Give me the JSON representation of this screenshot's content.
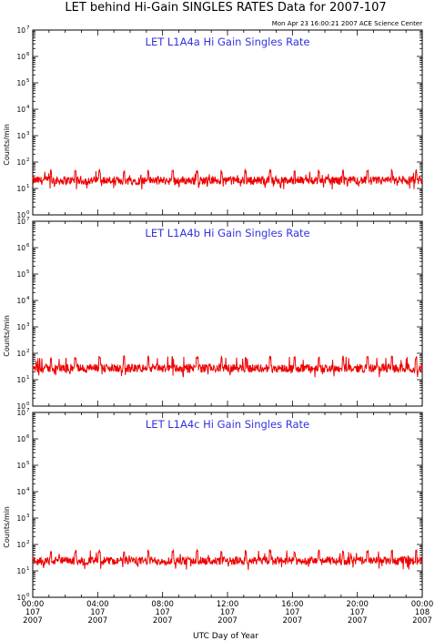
{
  "title": "LET behind Hi-Gain SINGLES RATES Data for 2007-107",
  "timestamp": "Mon Apr 23 16:00:21 2007 ACE Science Center",
  "xlabel": "UTC Day of Year",
  "colors": {
    "panel_title": "#3333dd",
    "series": "#ee0000",
    "axes": "#000000",
    "background": "#ffffff"
  },
  "chart_data": [
    {
      "type": "line",
      "panel_title": "LET L1A4a Hi Gain Singles Rate",
      "ylabel": "Counts/min",
      "yscale": "log",
      "ylim": [
        1,
        10000000
      ],
      "y_tick_labels": [
        {
          "base": "10",
          "exp": "0"
        },
        {
          "base": "10",
          "exp": "1"
        },
        {
          "base": "10",
          "exp": "2"
        },
        {
          "base": "10",
          "exp": "3"
        },
        {
          "base": "10",
          "exp": "4"
        },
        {
          "base": "10",
          "exp": "5"
        },
        {
          "base": "10",
          "exp": "6"
        },
        {
          "base": "10",
          "exp": "7"
        }
      ],
      "xlim_hours": [
        0,
        24
      ],
      "baseline": 20,
      "spike_level": 45,
      "spike_interval_hours": 1.5
    },
    {
      "type": "line",
      "panel_title": "LET L1A4b Hi Gain Singles Rate",
      "ylabel": "Counts/min",
      "yscale": "log",
      "ylim": [
        1,
        10000000
      ],
      "y_tick_labels": [
        {
          "base": "10",
          "exp": "0"
        },
        {
          "base": "10",
          "exp": "1"
        },
        {
          "base": "10",
          "exp": "2"
        },
        {
          "base": "10",
          "exp": "3"
        },
        {
          "base": "10",
          "exp": "4"
        },
        {
          "base": "10",
          "exp": "5"
        },
        {
          "base": "10",
          "exp": "6"
        },
        {
          "base": "10",
          "exp": "7"
        }
      ],
      "xlim_hours": [
        0,
        24
      ],
      "baseline": 27,
      "spike_level": 70,
      "spike_interval_hours": 1.5
    },
    {
      "type": "line",
      "panel_title": "LET L1A4c Hi Gain Singles Rate",
      "ylabel": "Counts/min",
      "yscale": "log",
      "ylim": [
        1,
        10000000
      ],
      "y_tick_labels": [
        {
          "base": "10",
          "exp": "0"
        },
        {
          "base": "10",
          "exp": "1"
        },
        {
          "base": "10",
          "exp": "2"
        },
        {
          "base": "10",
          "exp": "3"
        },
        {
          "base": "10",
          "exp": "4"
        },
        {
          "base": "10",
          "exp": "5"
        },
        {
          "base": "10",
          "exp": "6"
        },
        {
          "base": "10",
          "exp": "7"
        }
      ],
      "xlim_hours": [
        0,
        24
      ],
      "baseline": 24,
      "spike_level": 55,
      "spike_interval_hours": 1.5
    }
  ],
  "x_ticks": [
    {
      "hour": 0,
      "time": "00:00",
      "doy": "107",
      "year": "2007"
    },
    {
      "hour": 4,
      "time": "04:00",
      "doy": "107",
      "year": "2007"
    },
    {
      "hour": 8,
      "time": "08:00",
      "doy": "107",
      "year": "2007"
    },
    {
      "hour": 12,
      "time": "12:00",
      "doy": "107",
      "year": "2007"
    },
    {
      "hour": 16,
      "time": "16:00",
      "doy": "107",
      "year": "2007"
    },
    {
      "hour": 20,
      "time": "20:00",
      "doy": "107",
      "year": "2007"
    },
    {
      "hour": 24,
      "time": "00:00",
      "doy": "108",
      "year": "2007"
    }
  ]
}
